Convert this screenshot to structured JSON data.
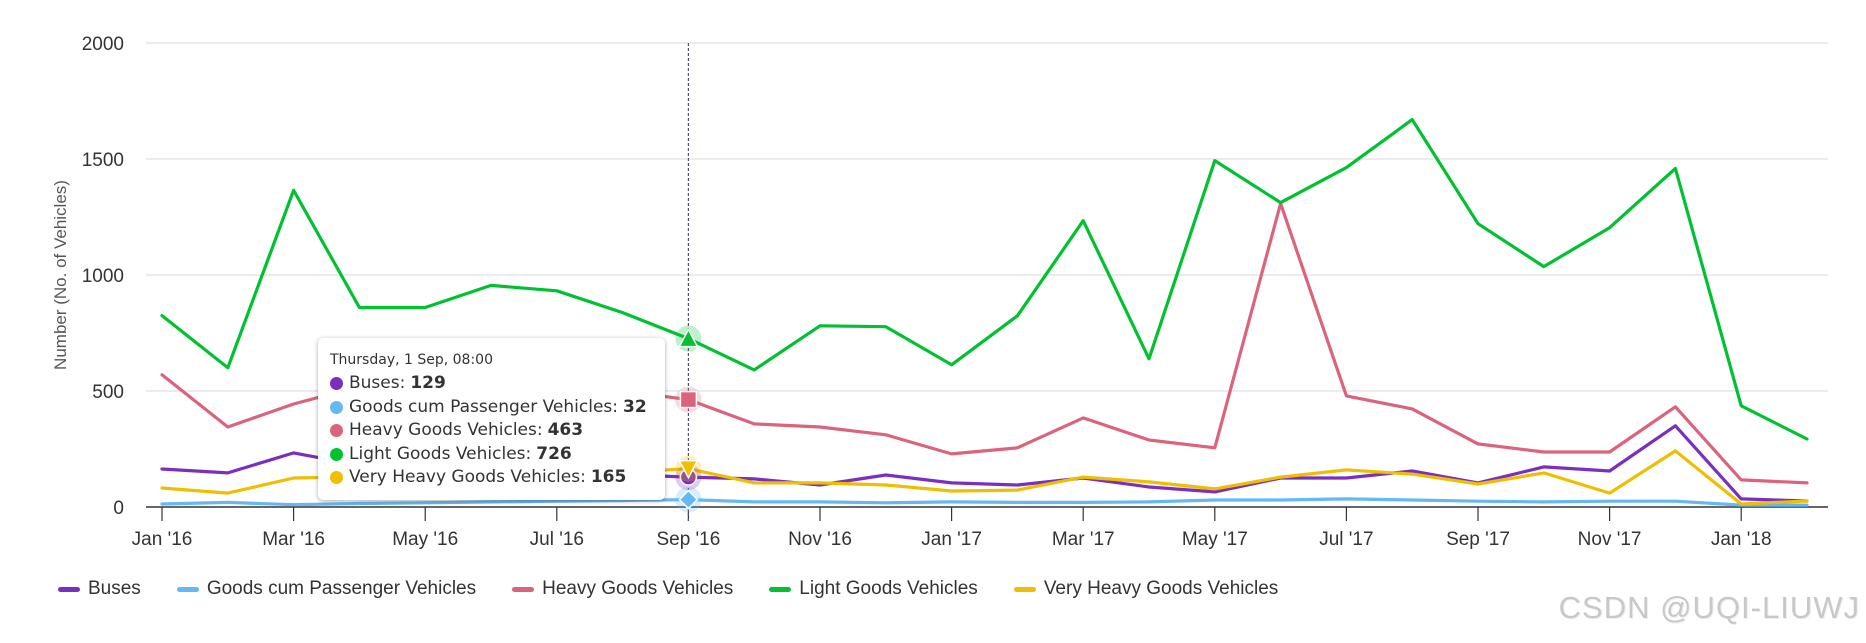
{
  "chart_data": {
    "type": "line",
    "title": "",
    "xlabel": "",
    "ylabel": "Number (No. of Vehicles)",
    "ylim": [
      0,
      2000
    ],
    "yticks": [
      "0",
      "500",
      "1000",
      "1500",
      "2000"
    ],
    "ytick_values": [
      0,
      500,
      1000,
      1500,
      2000
    ],
    "grid": true,
    "legend_position": "bottom-left",
    "x": [
      "Jan '16",
      "Feb '16",
      "Mar '16",
      "Apr '16",
      "May '16",
      "Jun '16",
      "Jul '16",
      "Aug '16",
      "Sep '16",
      "Oct '16",
      "Nov '16",
      "Dec '16",
      "Jan '17",
      "Feb '17",
      "Mar '17",
      "Apr '17",
      "May '17",
      "Jun '17",
      "Jul '17",
      "Aug '17",
      "Sep '17",
      "Oct '17",
      "Nov '17",
      "Dec '17",
      "Jan '18",
      "Feb '18"
    ],
    "xtick_labels": [
      "Jan '16",
      "Mar '16",
      "May '16",
      "Jul '16",
      "Sep '16",
      "Nov '16",
      "Jan '17",
      "Mar '17",
      "May '17",
      "Jul '17",
      "Sep '17",
      "Nov '17",
      "Jan '18"
    ],
    "xtick_indices": [
      0,
      2,
      4,
      6,
      8,
      10,
      12,
      14,
      16,
      18,
      20,
      22,
      24
    ],
    "series": [
      {
        "name": "Buses",
        "color": "#7b2fbe",
        "marker": "circle",
        "values": [
          164,
          147,
          233,
          180,
          160,
          150,
          145,
          140,
          129,
          121,
          95,
          138,
          104,
          95,
          125,
          86,
          65,
          125,
          125,
          155,
          104,
          173,
          155,
          350,
          35,
          26
        ]
      },
      {
        "name": "Goods cum Passenger Vehicles",
        "color": "#64b8f5",
        "marker": "diamond",
        "values": [
          13,
          20,
          10,
          15,
          18,
          22,
          25,
          28,
          32,
          22,
          22,
          18,
          22,
          20,
          20,
          22,
          30,
          30,
          35,
          30,
          25,
          22,
          25,
          25,
          8,
          8
        ]
      },
      {
        "name": "Heavy Goods Vehicles",
        "color": "#dc637c",
        "marker": "square",
        "values": [
          570,
          345,
          444,
          520,
          560,
          540,
          520,
          500,
          463,
          358,
          345,
          311,
          229,
          255,
          384,
          289,
          255,
          1308,
          479,
          423,
          272,
          237,
          237,
          432,
          117,
          104
        ]
      },
      {
        "name": "Light Goods Vehicles",
        "color": "#00c230",
        "marker": "triangle",
        "values": [
          825,
          600,
          1365,
          860,
          860,
          955,
          932,
          838,
          726,
          591,
          781,
          777,
          613,
          824,
          1234,
          639,
          1493,
          1312,
          1463,
          1670,
          1221,
          1036,
          1204,
          1459,
          436,
          293
        ]
      },
      {
        "name": "Very Heavy Goods Vehicles",
        "color": "#f0be00",
        "marker": "triangle-down",
        "values": [
          82,
          60,
          125,
          130,
          128,
          132,
          140,
          150,
          165,
          104,
          104,
          95,
          69,
          73,
          129,
          108,
          78,
          129,
          160,
          142,
          99,
          147,
          60,
          242,
          13,
          26
        ]
      }
    ],
    "hover_index": 8
  },
  "tooltip": {
    "title": "Thursday, 1 Sep, 08:00",
    "rows": [
      {
        "label": "Buses:",
        "value": "129",
        "color": "#7b2fbe"
      },
      {
        "label": "Goods cum Passenger Vehicles:",
        "value": "32",
        "color": "#64b8f5"
      },
      {
        "label": "Heavy Goods Vehicles:",
        "value": "463",
        "color": "#dc637c"
      },
      {
        "label": "Light Goods Vehicles:",
        "value": "726",
        "color": "#00c230"
      },
      {
        "label": "Very Heavy Goods Vehicles:",
        "value": "165",
        "color": "#f0be00"
      }
    ]
  },
  "legend": {
    "items": [
      {
        "label": "Buses",
        "color": "#7b2fbe"
      },
      {
        "label": "Goods cum Passenger Vehicles",
        "color": "#64b8f5"
      },
      {
        "label": "Heavy Goods Vehicles",
        "color": "#dc637c"
      },
      {
        "label": "Light Goods Vehicles",
        "color": "#00c230"
      },
      {
        "label": "Very Heavy Goods Vehicles",
        "color": "#f0be00"
      }
    ]
  },
  "watermark": "CSDN @UQI-LIUWJ"
}
